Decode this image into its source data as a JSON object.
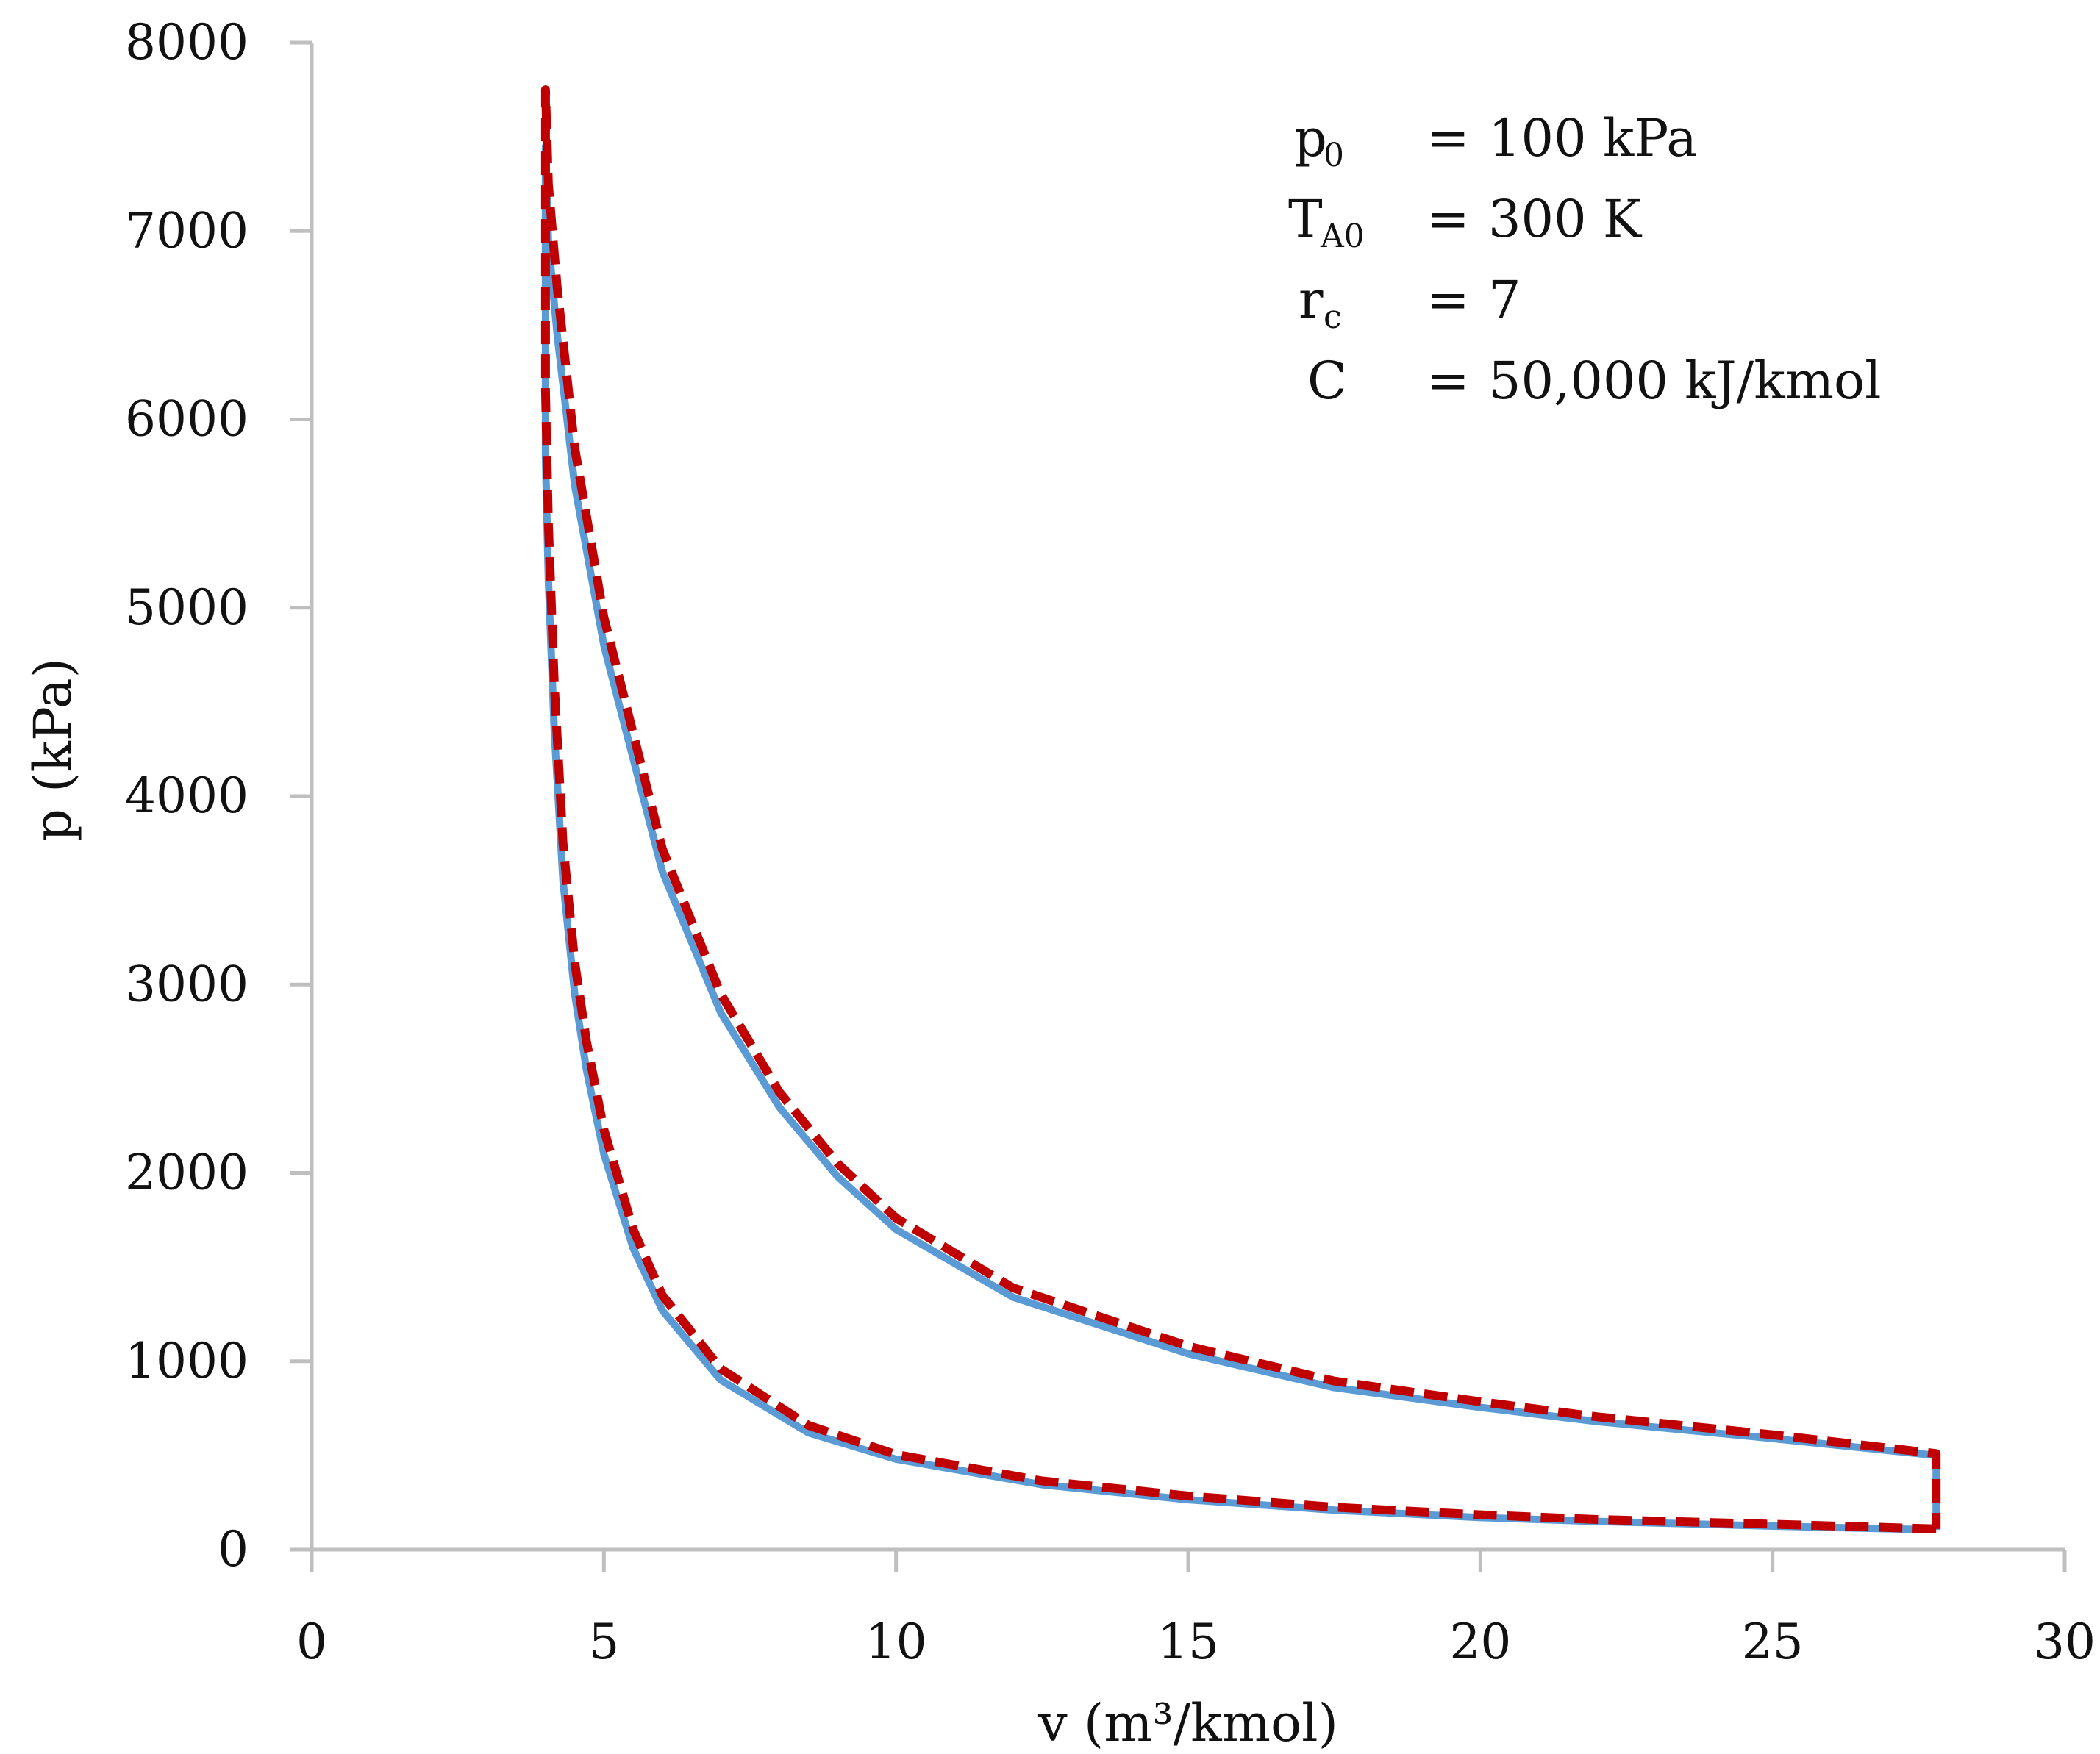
{
  "chart_data": {
    "type": "line",
    "title": "",
    "xlabel": "v (m³/kmol)",
    "ylabel": "p (kPa)",
    "xlim": [
      0,
      30
    ],
    "ylim": [
      0,
      8000
    ],
    "x_ticks": [
      "0",
      "5",
      "10",
      "15",
      "20",
      "25",
      "30"
    ],
    "y_ticks": [
      "0",
      "1000",
      "2000",
      "3000",
      "4000",
      "5000",
      "6000",
      "7000",
      "8000"
    ],
    "grid": false,
    "legend": "none",
    "colors": {
      "series_a": "#5b9bd5",
      "series_b": "#c00000",
      "axis": "#bfbfbf"
    },
    "series": [
      {
        "name": "series-a-solid",
        "style": "solid",
        "x": [
          27.8,
          25,
          22,
          20,
          17.5,
          15,
          12.5,
          10,
          8.5,
          7,
          6,
          5.5,
          5,
          4.7,
          4.5,
          4.3,
          4.15,
          4.05,
          4.0,
          4.0,
          4.05,
          4.2,
          4.5,
          5,
          6,
          7,
          8,
          9,
          10,
          12,
          15,
          17.5,
          20,
          22,
          25,
          27.8,
          27.8
        ],
        "y": [
          105,
          125,
          150,
          170,
          210,
          265,
          345,
          480,
          620,
          900,
          1270,
          1600,
          2100,
          2550,
          2950,
          3550,
          4350,
          5150,
          5800,
          7450,
          6950,
          6450,
          5650,
          4800,
          3600,
          2850,
          2350,
          1980,
          1700,
          1340,
          1040,
          860,
          755,
          680,
          590,
          500,
          105
        ]
      },
      {
        "name": "series-b-dashed",
        "style": "dashed",
        "x": [
          27.8,
          25,
          22,
          20,
          17.5,
          15,
          12.5,
          10,
          8.5,
          7,
          6,
          5.5,
          5,
          4.7,
          4.5,
          4.3,
          4.15,
          4.05,
          4.0,
          4.0,
          4.05,
          4.2,
          4.5,
          5,
          6,
          7,
          8,
          9,
          10,
          12,
          15,
          17.5,
          20,
          22,
          25,
          27.8,
          27.8
        ],
        "y": [
          110,
          135,
          160,
          185,
          225,
          285,
          365,
          505,
          660,
          960,
          1350,
          1700,
          2230,
          2700,
          3120,
          3750,
          4600,
          5450,
          6150,
          7750,
          7250,
          6700,
          5850,
          4950,
          3720,
          2950,
          2430,
          2050,
          1760,
          1390,
          1080,
          895,
          785,
          705,
          610,
          510,
          110
        ]
      }
    ],
    "annotations": [
      {
        "symbol": "p",
        "sub": "0",
        "eq": "=",
        "value": "100 kPa"
      },
      {
        "symbol": "T",
        "sub": "A0",
        "eq": "=",
        "value": "300 K"
      },
      {
        "symbol": "r",
        "sub": "c",
        "eq": "=",
        "value": "7"
      },
      {
        "symbol": "C",
        "sub": "",
        "eq": "=",
        "value": "50,000 kJ/kmol"
      }
    ]
  }
}
